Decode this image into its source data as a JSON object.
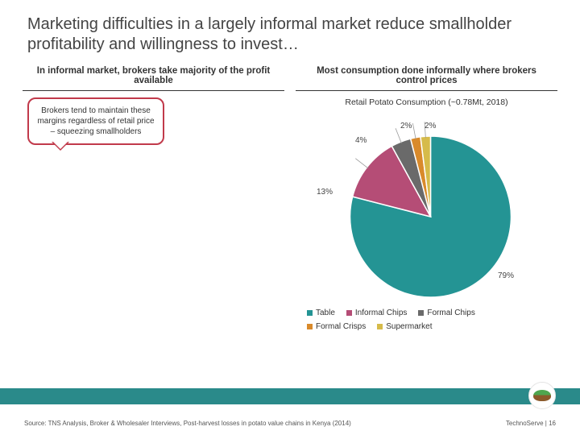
{
  "title": "Marketing difficulties in a largely informal market reduce smallholder profitability and willingness to invest…",
  "left": {
    "header": "In informal market, brokers take majority of the profit available",
    "callout": "Brokers tend to maintain these margins regardless of retail price – squeezing smallholders"
  },
  "right": {
    "header": "Most consumption done informally where brokers control prices",
    "subtitle": "Retail Potato Consumption (~0.78Mt, 2018)",
    "pie": {
      "type": "pie",
      "slices": [
        {
          "label": "Table",
          "value": 79,
          "color": "#249494",
          "display": "79%"
        },
        {
          "label": "Informal Chips",
          "value": 13,
          "color": "#b54d76",
          "display": "13%"
        },
        {
          "label": "Formal Chips",
          "value": 4,
          "color": "#6a6a6a",
          "display": "4%"
        },
        {
          "label": "Formal Crisps",
          "value": 2,
          "color": "#d98a2b",
          "display": "2%"
        },
        {
          "label": "Supermarket",
          "value": 2,
          "color": "#d6bb4a",
          "display": "2%"
        }
      ]
    }
  },
  "footer": {
    "source": "Source: TNS Analysis, Broker & Wholesaler Interviews, Post-harvest losses in potato value chains in Kenya (2014)",
    "page": "TechnoServe | 16"
  },
  "accent_bar_color": "#2a8a8a"
}
